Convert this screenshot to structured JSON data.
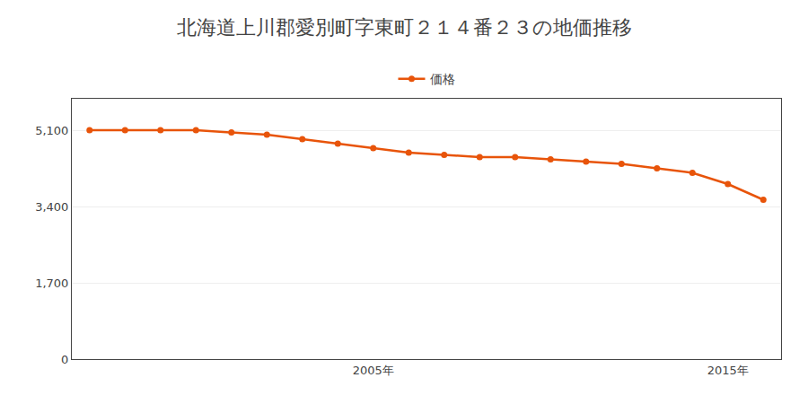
{
  "chart_data": {
    "type": "line",
    "title": "北海道上川郡愛別町字東町２１４番２３の地価推移",
    "x": [
      1997,
      1998,
      1999,
      2000,
      2001,
      2002,
      2003,
      2004,
      2005,
      2006,
      2007,
      2008,
      2009,
      2010,
      2011,
      2012,
      2013,
      2014,
      2015,
      2016
    ],
    "series": [
      {
        "name": "価格",
        "color": "#E8540A",
        "marker": "circle",
        "values": [
          5100,
          5100,
          5100,
          5100,
          5050,
          5000,
          4900,
          4800,
          4700,
          4600,
          4550,
          4500,
          4500,
          4450,
          4400,
          4350,
          4250,
          4150,
          3900,
          3550
        ]
      }
    ],
    "xlim": [
      1996.5,
      2016.5
    ],
    "xticks": [
      {
        "value": 2005,
        "label": "2005年"
      },
      {
        "value": 2015,
        "label": "2015年"
      }
    ],
    "ylim": [
      0,
      5800
    ],
    "yticks": [
      0,
      {
        "value": 1700,
        "label": "1,700"
      },
      {
        "value": 3400,
        "label": "3,400"
      },
      {
        "value": 5100,
        "label": "5,100"
      }
    ],
    "grid": "y",
    "legend": "top"
  }
}
